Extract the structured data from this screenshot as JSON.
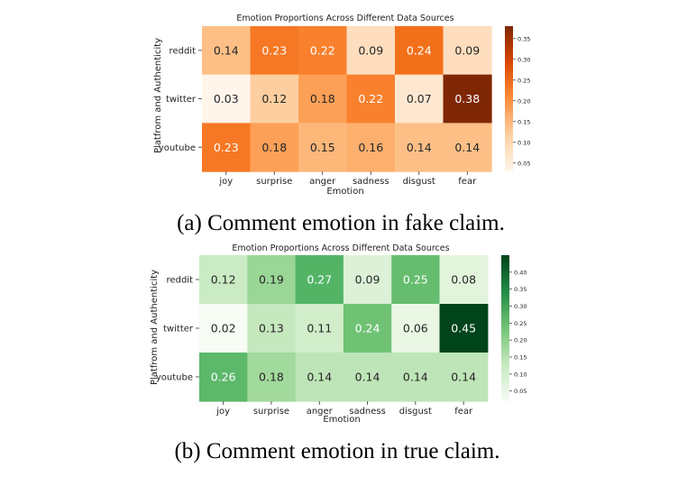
{
  "chart_data": [
    {
      "type": "heatmap",
      "title": "Emotion Proportions Across Different Data Sources",
      "xlabel": "Emotion",
      "ylabel": "Platfrom and Authenticity",
      "categories": [
        "joy",
        "surprise",
        "anger",
        "sadness",
        "disgust",
        "fear"
      ],
      "rows": [
        "reddit",
        "twitter",
        "youtube"
      ],
      "values": [
        [
          0.14,
          0.23,
          0.22,
          0.09,
          0.24,
          0.09
        ],
        [
          0.03,
          0.12,
          0.18,
          0.22,
          0.07,
          0.38
        ],
        [
          0.23,
          0.18,
          0.15,
          0.16,
          0.14,
          0.14
        ]
      ],
      "colorbar": {
        "range": [
          0.03,
          0.38
        ],
        "ticks": [
          "0.05",
          "0.10",
          "0.15",
          "0.20",
          "0.25",
          "0.30",
          "0.35"
        ]
      },
      "colormap": "Oranges",
      "caption": "(a) Comment emotion in fake claim."
    },
    {
      "type": "heatmap",
      "title": "Emotion Proportions Across Different Data Sources",
      "xlabel": "Emotion",
      "ylabel": "Platfrom and Authenticity",
      "categories": [
        "joy",
        "surprise",
        "anger",
        "sadness",
        "disgust",
        "fear"
      ],
      "rows": [
        "reddit",
        "twitter",
        "youtube"
      ],
      "values": [
        [
          0.12,
          0.19,
          0.27,
          0.09,
          0.25,
          0.08
        ],
        [
          0.02,
          0.13,
          0.11,
          0.24,
          0.06,
          0.45
        ],
        [
          0.26,
          0.18,
          0.14,
          0.14,
          0.14,
          0.14
        ]
      ],
      "colorbar": {
        "range": [
          0.02,
          0.45
        ],
        "ticks": [
          "0.05",
          "0.10",
          "0.15",
          "0.20",
          "0.25",
          "0.30",
          "0.35",
          "0.40"
        ]
      },
      "colormap": "Greens",
      "caption": "(b) Comment emotion in true claim."
    }
  ]
}
